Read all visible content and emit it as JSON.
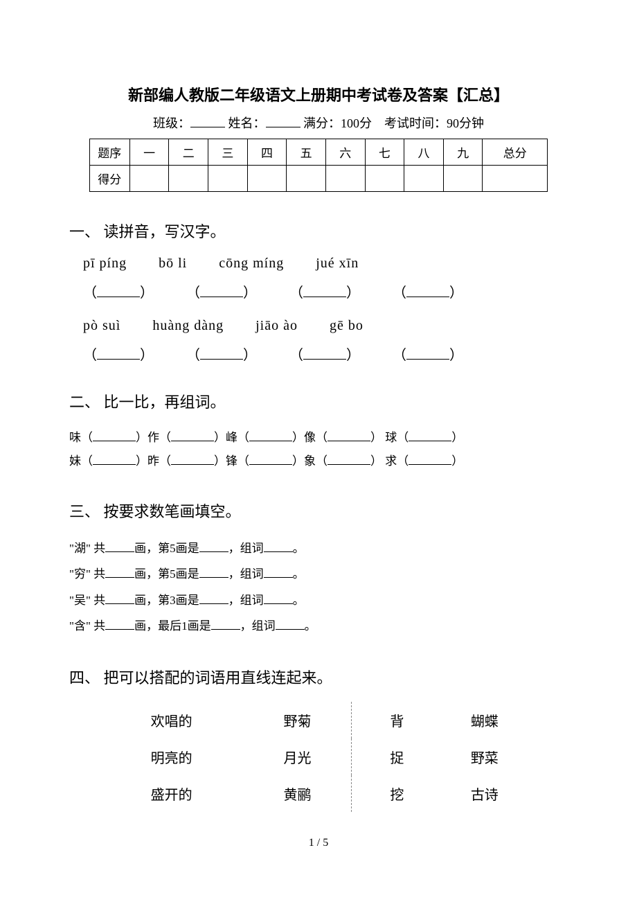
{
  "title": "新部编人教版二年级语文上册期中考试卷及答案【汇总】",
  "header": {
    "class_label": "班级：",
    "name_label": "姓名：",
    "fullscore_label": "满分：100分",
    "time_label": "考试时间：90分钟"
  },
  "score_table": {
    "row1_label": "题序",
    "row2_label": "得分",
    "cols": [
      "一",
      "二",
      "三",
      "四",
      "五",
      "六",
      "七",
      "八",
      "九",
      "总分"
    ]
  },
  "sections": {
    "s1": {
      "heading": "一、 读拼音，写汉字。",
      "pinyin_row1": [
        "pī píng",
        "bō li",
        "cōng míng",
        "jué xīn"
      ],
      "pinyin_row2": [
        "pò suì",
        "huàng dàng",
        "jiāo ào",
        "gē bo"
      ]
    },
    "s2": {
      "heading": "二、 比一比，再组词。",
      "line1_chars": [
        "味",
        "作",
        "峰",
        "像",
        "球"
      ],
      "line2_chars": [
        "妹",
        "昨",
        "锋",
        "象",
        "求"
      ]
    },
    "s3": {
      "heading": "三、 按要求数笔画填空。",
      "lines": [
        {
          "char": "湖",
          "nth": "5",
          "extra": "画是",
          "end": "，组词"
        },
        {
          "char": "穷",
          "nth": "5",
          "extra": "画是",
          "end": "，组词"
        },
        {
          "char": "吴",
          "nth": "3",
          "extra": "画是",
          "end": "，组词"
        },
        {
          "char": "含",
          "nth_label": "最后1",
          "extra": "画是",
          "end": "，组词"
        }
      ]
    },
    "s4": {
      "heading": "四、 把可以搭配的词语用直线连起来。",
      "left_col1": [
        "欢唱的",
        "明亮的",
        "盛开的"
      ],
      "left_col2": [
        "野菊",
        "月光",
        "黄鹂"
      ],
      "right_col1": [
        "背",
        "捉",
        "挖"
      ],
      "right_col2": [
        "蝴蝶",
        "野菜",
        "古诗"
      ]
    }
  },
  "page_num": "1 / 5"
}
